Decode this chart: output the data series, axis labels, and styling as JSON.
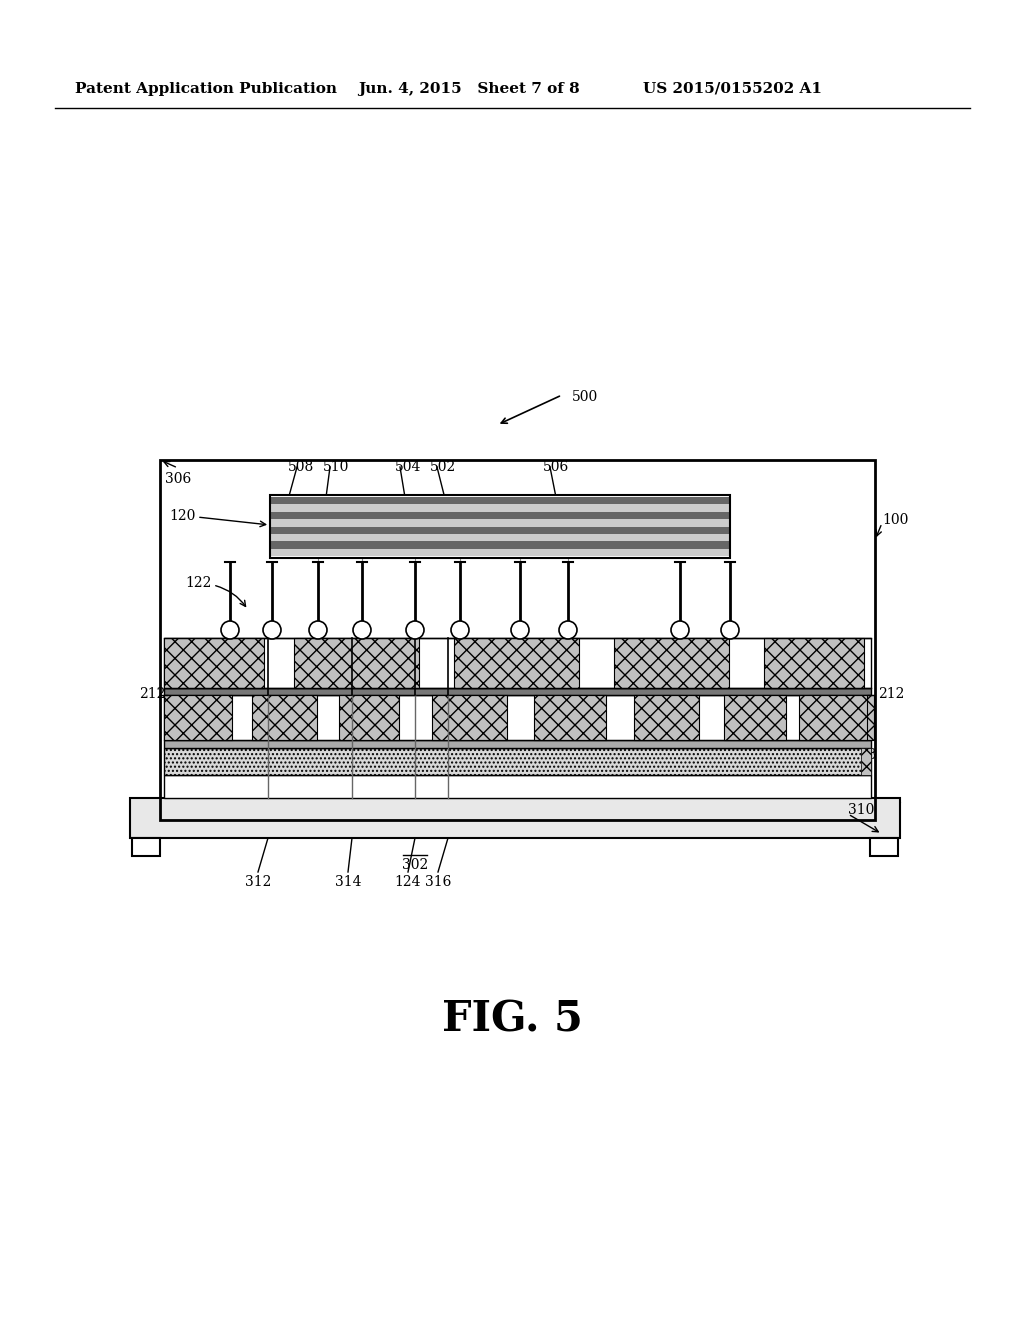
{
  "bg_color": "#ffffff",
  "header_left": "Patent Application Publication",
  "header_mid": "Jun. 4, 2015   Sheet 7 of 8",
  "header_right": "US 2015/0155202 A1",
  "fig_label": "FIG. 5",
  "lc": "#000000",
  "light_hatch": "#c8c8c8",
  "stipple_fill": "#d4d4d4",
  "mid_gray": "#999999",
  "board_fill": "#e0e0e0"
}
